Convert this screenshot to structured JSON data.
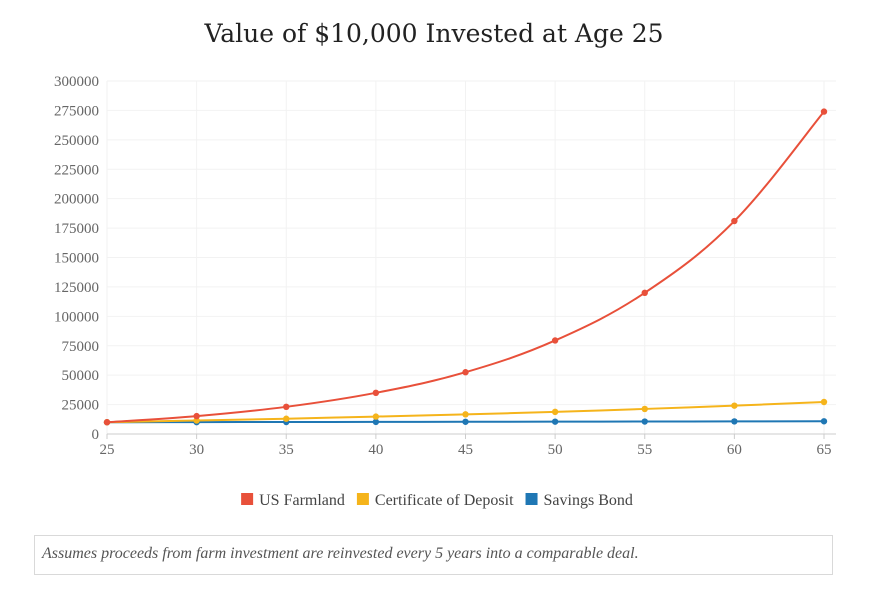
{
  "chart_data": {
    "type": "line",
    "title": "Value of $10,000 Invested at Age 25",
    "x": [
      25,
      30,
      35,
      40,
      45,
      50,
      55,
      60,
      65
    ],
    "xlim": [
      25,
      65
    ],
    "ylim": [
      0,
      300000
    ],
    "y_ticks": [
      0,
      25000,
      50000,
      75000,
      100000,
      125000,
      150000,
      175000,
      200000,
      225000,
      250000,
      275000,
      300000
    ],
    "grid": true,
    "legend_position": "bottom",
    "series": [
      {
        "name": "US Farmland",
        "color": "#e8503a",
        "values": [
          10000,
          15200,
          23100,
          35000,
          52500,
          79500,
          120000,
          181000,
          274000
        ]
      },
      {
        "name": "Certificate of Deposit",
        "color": "#f5b41b",
        "values": [
          10000,
          11500,
          13000,
          14800,
          16700,
          18800,
          21300,
          24100,
          27200
        ]
      },
      {
        "name": "Savings Bond",
        "color": "#1f77b4",
        "values": [
          10000,
          10100,
          10200,
          10300,
          10400,
          10500,
          10600,
          10700,
          10800
        ]
      }
    ]
  },
  "note": {
    "text": "Assumes proceeds from farm investment are reinvested every 5 years into a comparable deal."
  }
}
